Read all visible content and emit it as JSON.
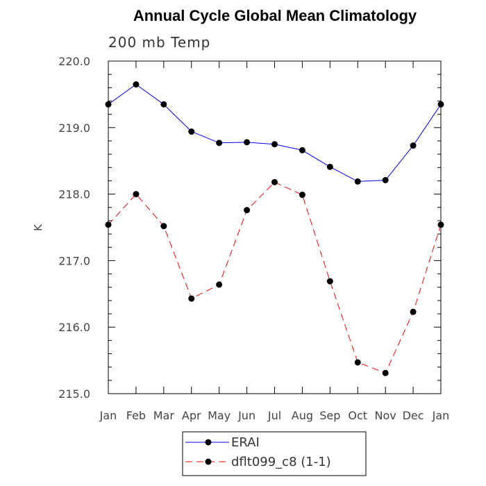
{
  "chart_data": {
    "type": "line",
    "title": "Annual Cycle Global Mean Climatology",
    "subtitle": "200 mb Temp",
    "xlabel": "",
    "ylabel": "K",
    "categories": [
      "Jan",
      "Feb",
      "Mar",
      "Apr",
      "May",
      "Jun",
      "Jul",
      "Aug",
      "Sep",
      "Oct",
      "Nov",
      "Dec",
      "Jan"
    ],
    "yticks": [
      "215.0",
      "216.0",
      "217.0",
      "218.0",
      "219.0",
      "220.0"
    ],
    "ylim": [
      215.0,
      220.0
    ],
    "grid": false,
    "legend_position": "bottom-center",
    "series": [
      {
        "name": "ERAI",
        "color": "#0000ff",
        "dash": "solid",
        "values": [
          219.35,
          219.65,
          219.35,
          218.94,
          218.77,
          218.78,
          218.75,
          218.66,
          218.41,
          218.19,
          218.21,
          218.73,
          219.35
        ]
      },
      {
        "name": "dflt099_c8 (1-1)",
        "color": "#ff0000",
        "dash": "dashed",
        "values": [
          217.54,
          218.0,
          217.52,
          216.43,
          216.64,
          217.76,
          218.18,
          217.99,
          216.69,
          215.47,
          215.31,
          216.23,
          217.54
        ]
      }
    ]
  }
}
